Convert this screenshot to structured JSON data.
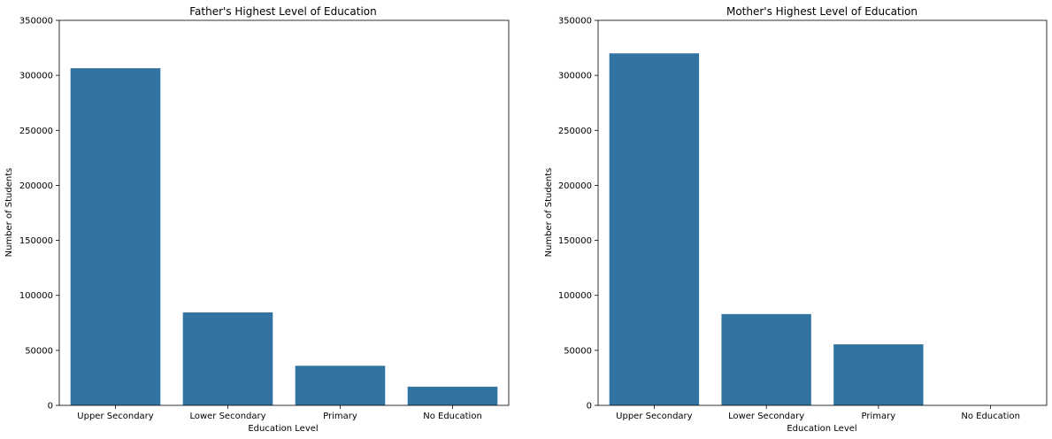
{
  "bar_color": "#3274a1",
  "chart_data": [
    {
      "type": "bar",
      "title": "Father's Highest Level of Education",
      "xlabel": "Education Level",
      "ylabel": "Number of Students",
      "categories": [
        "Upper Secondary",
        "Lower Secondary",
        "Primary",
        "No Education"
      ],
      "values": [
        306500,
        84500,
        36000,
        17000
      ],
      "ylim": [
        0,
        350000
      ],
      "yticks": [
        0,
        50000,
        100000,
        150000,
        200000,
        250000,
        300000,
        350000
      ],
      "grid": false
    },
    {
      "type": "bar",
      "title": "Mother's Highest Level of Education",
      "xlabel": "Education Level",
      "ylabel": "Number of Students",
      "categories": [
        "Upper Secondary",
        "Lower Secondary",
        "Primary",
        "No Education"
      ],
      "values": [
        320000,
        83000,
        55500,
        0
      ],
      "ylim": [
        0,
        350000
      ],
      "yticks": [
        0,
        50000,
        100000,
        150000,
        200000,
        250000,
        300000,
        350000
      ],
      "grid": false
    }
  ]
}
